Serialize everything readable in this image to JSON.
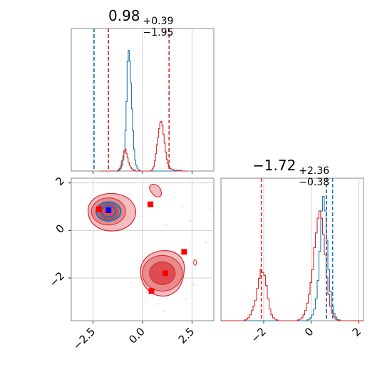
{
  "chart_data": [
    {
      "type": "histogram",
      "panel": "marginal-x",
      "title": {
        "value": "0.98",
        "plus": "+0.39",
        "minus": "−1.95"
      },
      "xlim": [
        -3.6,
        3.6
      ],
      "grid": true,
      "series": [
        {
          "color": "#1f77b4",
          "bins": [
            -2.2,
            2.2
          ],
          "counts": [
            0,
            0,
            0,
            0,
            0,
            0,
            0,
            0,
            0,
            0,
            0,
            0,
            0,
            0,
            0,
            0,
            1,
            2,
            4,
            8,
            15,
            28,
            55,
            95,
            150,
            165,
            150,
            120,
            85,
            55,
            30,
            15,
            8,
            4,
            2,
            1,
            0,
            0,
            0,
            0,
            0,
            0,
            0,
            0,
            0,
            0,
            0,
            0,
            0,
            0,
            0,
            0,
            0,
            0,
            0,
            0,
            0,
            0,
            0,
            0,
            0,
            0,
            0,
            0,
            0,
            0,
            0,
            0,
            0,
            0,
            0,
            0,
            0,
            0,
            0,
            0,
            0,
            0,
            0,
            0
          ]
        },
        {
          "color": "#d62728",
          "bins": [
            -2.2,
            2.2
          ],
          "counts": [
            0,
            0,
            0,
            0,
            0,
            0,
            0,
            0,
            0,
            0,
            0,
            0,
            0,
            0,
            0,
            1,
            2,
            4,
            8,
            14,
            20,
            26,
            30,
            24,
            18,
            12,
            8,
            5,
            3,
            2,
            1,
            1,
            0,
            0,
            0,
            0,
            0,
            0,
            0,
            0,
            0,
            0,
            0,
            0,
            0,
            0,
            1,
            3,
            6,
            14,
            24,
            36,
            46,
            58,
            66,
            68,
            62,
            50,
            38,
            26,
            16,
            10,
            6,
            4,
            3,
            2,
            2,
            1,
            1,
            1,
            1,
            1,
            0,
            1,
            0,
            0,
            0,
            0,
            0,
            0
          ]
        }
      ],
      "quantile_lines": [
        {
          "color": "#1f77b4",
          "x": [
            -2.45,
            -1.72
          ]
        },
        {
          "color": "#d62728",
          "x": [
            -1.72,
            1.34
          ]
        }
      ],
      "truth_line": -1.72,
      "xticks": [
        -2.5,
        0.0,
        2.5
      ]
    },
    {
      "type": "contour",
      "panel": "joint",
      "xlim": [
        -3.6,
        3.6
      ],
      "ylim": [
        -3.8,
        2.2
      ],
      "grid": true,
      "xticks": [
        "−2.5",
        "0.0",
        "2.5"
      ],
      "yticks": [
        "2",
        "0",
        "−2"
      ],
      "series": [
        {
          "color": "#d62728",
          "modes": [
            {
              "x": -1.72,
              "y": 0.8
            },
            {
              "x": 1.0,
              "y": -1.8
            }
          ]
        },
        {
          "color": "#1f77b4",
          "modes": [
            {
              "x": -1.72,
              "y": 0.8
            }
          ]
        }
      ],
      "red_points": [
        {
          "x": -2.2,
          "y": 0.9
        },
        {
          "x": 0.4,
          "y": 1.1
        },
        {
          "x": 2.1,
          "y": -0.9
        },
        {
          "x": 1.15,
          "y": -1.8
        },
        {
          "x": 0.45,
          "y": -2.55
        }
      ],
      "blue_point": {
        "x": -1.72,
        "y": 0.85
      }
    },
    {
      "type": "histogram",
      "panel": "marginal-y",
      "title": {
        "value": "−1.72",
        "plus": "+2.36",
        "minus": "−0.38"
      },
      "xlim": [
        -3.8,
        2.2
      ],
      "grid": true,
      "xticks": [
        "−2",
        "0",
        "2"
      ],
      "series": [
        {
          "color": "#1f77b4",
          "bins": [
            -3.8,
            2.2
          ],
          "counts": [
            0,
            0,
            0,
            0,
            0,
            0,
            0,
            0,
            0,
            0,
            0,
            0,
            0,
            0,
            0,
            0,
            0,
            0,
            0,
            0,
            0,
            0,
            0,
            0,
            0,
            0,
            0,
            0,
            0,
            0,
            0,
            0,
            0,
            0,
            0,
            0,
            0,
            0,
            0,
            0,
            0,
            0,
            0,
            0,
            0,
            0,
            0,
            0,
            1,
            2,
            4,
            8,
            16,
            30,
            55,
            95,
            150,
            170,
            150,
            110,
            70,
            40,
            20,
            10,
            5,
            2,
            1,
            0,
            0,
            0,
            0,
            0,
            0,
            0,
            0,
            0,
            0,
            0,
            0,
            0
          ]
        },
        {
          "color": "#d62728",
          "bins": [
            -3.8,
            2.2
          ],
          "counts": [
            0,
            0,
            0,
            0,
            0,
            0,
            0,
            0,
            0,
            0,
            0,
            0,
            0,
            1,
            2,
            4,
            8,
            14,
            20,
            28,
            44,
            58,
            70,
            66,
            62,
            48,
            30,
            16,
            8,
            4,
            2,
            1,
            0,
            0,
            0,
            0,
            0,
            0,
            0,
            0,
            0,
            0,
            0,
            1,
            2,
            4,
            8,
            14,
            24,
            36,
            52,
            70,
            100,
            120,
            140,
            150,
            140,
            118,
            90,
            60,
            36,
            20,
            10,
            5,
            2,
            1,
            0,
            0,
            0,
            0,
            0,
            0,
            0,
            0,
            0,
            0,
            0,
            0,
            0,
            0
          ]
        }
      ],
      "quantile_lines": [
        {
          "color": "#d62728",
          "x": [
            -2.1,
            0.64
          ]
        },
        {
          "color": "#1f77b4",
          "x": [
            0.64,
            0.9
          ]
        }
      ]
    }
  ]
}
